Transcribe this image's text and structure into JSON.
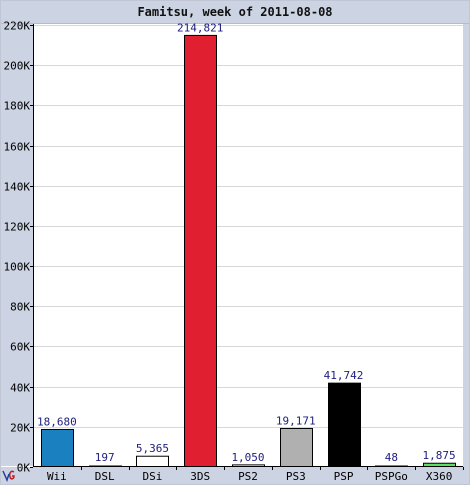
{
  "chart_data": {
    "type": "bar",
    "title": "Famitsu, week of 2011-08-08",
    "xlabel": "",
    "ylabel": "",
    "categories": [
      "Wii",
      "DSL",
      "DSi",
      "3DS",
      "PS2",
      "PS3",
      "PSP",
      "PSPGo",
      "X360"
    ],
    "values": [
      18680,
      197,
      5365,
      214821,
      1050,
      19171,
      41742,
      48,
      1875
    ],
    "value_labels": [
      "18,680",
      "197",
      "5,365",
      "214,821",
      "1,050",
      "19,171",
      "41,742",
      "48",
      "1,875"
    ],
    "bar_colors": [
      "#1a80c0",
      "#ffffff",
      "#ffffff",
      "#e02030",
      "#ffffff",
      "#b0b0b0",
      "#000000",
      "#ffffff",
      "#60e060"
    ],
    "ylim": [
      0,
      220000
    ],
    "yticks": [
      0,
      20000,
      40000,
      60000,
      80000,
      100000,
      120000,
      140000,
      160000,
      180000,
      200000,
      220000
    ],
    "ytick_labels": [
      "0K",
      "20K",
      "40K",
      "60K",
      "80K",
      "100K",
      "120K",
      "140K",
      "160K",
      "180K",
      "200K",
      "220K"
    ],
    "grid": true,
    "legend": "none",
    "colors": {
      "panel": "#ccd3e2",
      "grid": "#d8d8d8",
      "axis": "#000000",
      "value_label": "#202080",
      "tick_label": "#000000"
    }
  },
  "logo": {
    "icon": "vgchartz-logo-icon"
  }
}
